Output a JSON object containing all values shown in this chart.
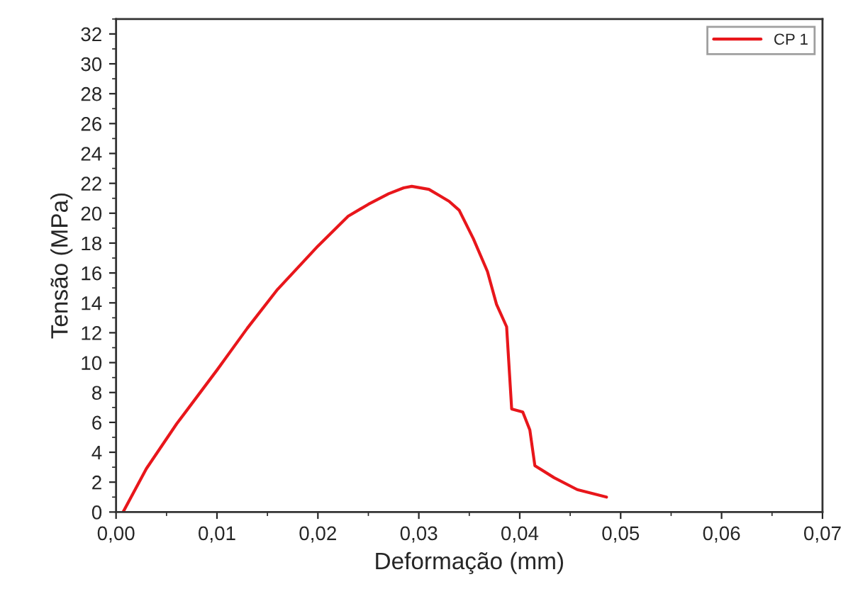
{
  "chart_data": {
    "type": "line",
    "xlabel": "Deformação (mm)",
    "ylabel": "Tensão (MPa)",
    "x": [
      0.0007,
      0.003,
      0.006,
      0.01,
      0.013,
      0.016,
      0.02,
      0.023,
      0.025,
      0.027,
      0.0285,
      0.0293,
      0.031,
      0.032,
      0.033,
      0.034,
      0.0354,
      0.0368,
      0.0377,
      0.0387,
      0.0392,
      0.0403,
      0.041,
      0.0415,
      0.0434,
      0.0457,
      0.0486
    ],
    "series": [
      {
        "name": "CP 1",
        "color": "#e8161b",
        "values": [
          0,
          2.9,
          5.9,
          9.5,
          12.3,
          14.9,
          17.8,
          19.8,
          20.6,
          21.3,
          21.7,
          21.8,
          21.6,
          21.2,
          20.8,
          20.2,
          18.3,
          16.1,
          13.9,
          12.4,
          6.9,
          6.7,
          5.5,
          3.1,
          2.3,
          1.5,
          1.0
        ]
      }
    ],
    "xlim": [
      0,
      0.07
    ],
    "ylim": [
      0,
      33
    ],
    "xticks": [
      {
        "value": 0,
        "label": "0,00"
      },
      {
        "value": 0.01,
        "label": "0,01"
      },
      {
        "value": 0.02,
        "label": "0,02"
      },
      {
        "value": 0.03,
        "label": "0,03"
      },
      {
        "value": 0.04,
        "label": "0,04"
      },
      {
        "value": 0.05,
        "label": "0,05"
      },
      {
        "value": 0.06,
        "label": "0,06"
      },
      {
        "value": 0.07,
        "label": "0,07"
      }
    ],
    "yticks": [
      0,
      2,
      4,
      6,
      8,
      10,
      12,
      14,
      16,
      18,
      20,
      22,
      24,
      26,
      28,
      30,
      32
    ],
    "legend": "top right",
    "grid": false,
    "marker": "none",
    "line_style": "solid"
  }
}
